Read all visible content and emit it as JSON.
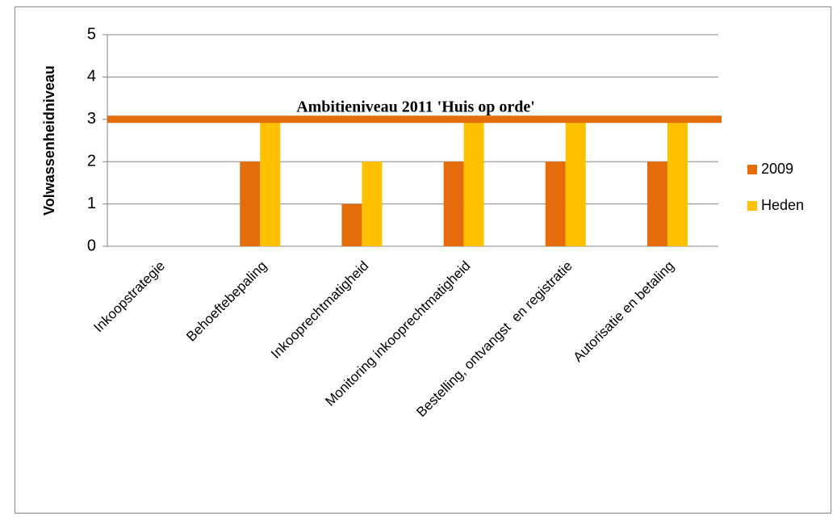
{
  "chart_data": {
    "type": "bar",
    "y_label": "Volwassenheidniveau",
    "categories": [
      "Inkoopstrategie",
      "Behoeftebepaling",
      "Inkooprechtmatigheid",
      "Monitoring inkooprechtmatigheid",
      "Bestelling, ontvangst  en registratie",
      "Autorisatie en betaling"
    ],
    "series": [
      {
        "name": "2009",
        "color": "#e46c0a",
        "values": [
          0,
          2,
          1,
          2,
          2,
          2
        ]
      },
      {
        "name": "Heden",
        "color": "#ffc000",
        "values": [
          0,
          3,
          2,
          3,
          3,
          3
        ]
      }
    ],
    "ylim": [
      0,
      5
    ],
    "yticks": [
      0,
      1,
      2,
      3,
      4,
      5
    ],
    "grid": true,
    "legend": "right",
    "annotation": {
      "text": "Ambitieniveau 2011 'Huis op orde'",
      "value": 3,
      "color": "#e46c0a"
    }
  }
}
